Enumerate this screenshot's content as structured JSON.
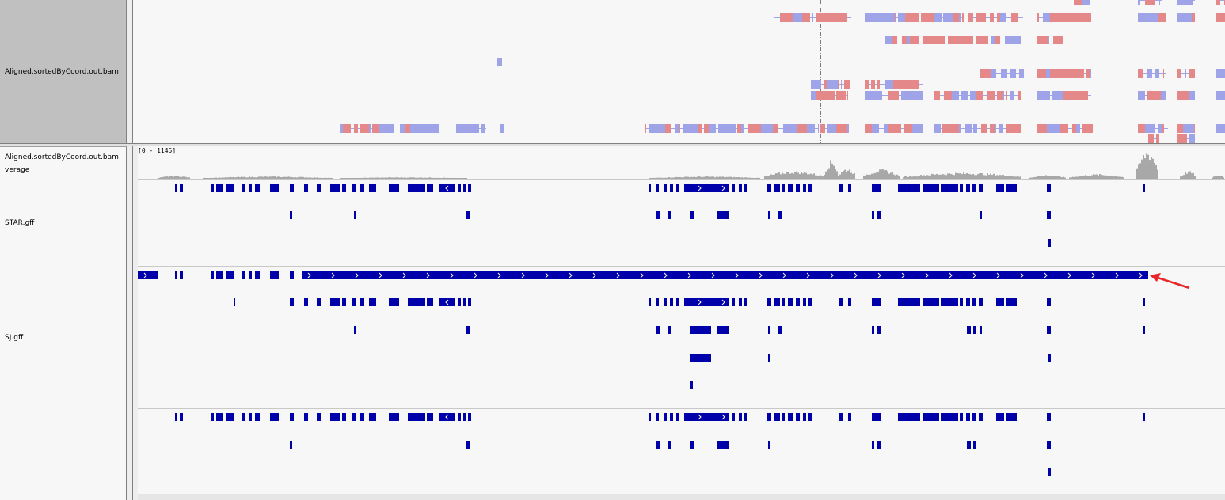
{
  "tracks": {
    "alignment_track": "Aligned.sortedByCoord.out.bam",
    "coverage_track": "Aligned.sortedByCoord.out.bam\nverage",
    "coverage_track_line1": "Aligned.sortedByCoord.out.bam",
    "coverage_track_line2": "verage",
    "coverage_range": "[0 - 1145]",
    "star_track": "STAR.gff",
    "sj_track": "SJ.gff"
  },
  "colors": {
    "read_forward": "#e4888a",
    "read_reverse": "#9fa3e8",
    "feature": "#0000aa",
    "coverage": "#a8a8a8",
    "annotation_arrow": "#e8262a",
    "panel_background": "#f7f7f7",
    "name_panel_selected": "#c0c0c0"
  },
  "icons": {
    "annotation": "red-arrow-icon"
  }
}
